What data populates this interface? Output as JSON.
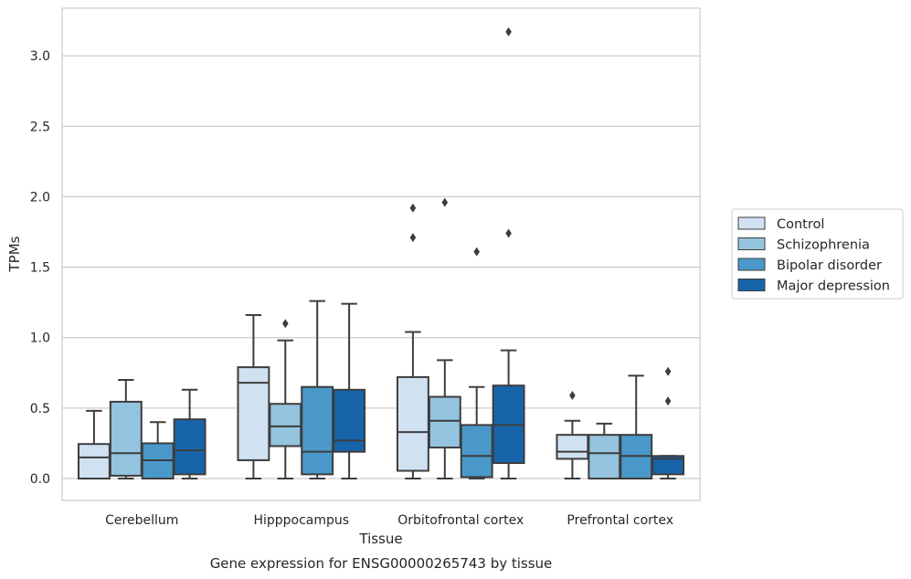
{
  "chart_data": {
    "type": "box",
    "title": "",
    "caption": "Gene expression for ENSG00000265743 by tissue",
    "xlabel": "Tissue",
    "ylabel": "TPMs",
    "ylim": [
      -0.15,
      3.33
    ],
    "yticks": [
      0.0,
      0.5,
      1.0,
      1.5,
      2.0,
      2.5,
      3.0
    ],
    "ytick_labels": [
      "0.0",
      "0.5",
      "1.0",
      "1.5",
      "2.0",
      "2.5",
      "3.0"
    ],
    "grid": "horizontal",
    "legend_position": "right",
    "categories": [
      "Cerebellum",
      "Hipppocampus",
      "Orbitofrontal cortex",
      "Prefrontal cortex"
    ],
    "series": [
      {
        "name": "Control",
        "color": "#d0e1f2",
        "boxes": [
          {
            "q1": 0.0,
            "median": 0.15,
            "q3": 0.245,
            "whislo": 0.0,
            "whishi": 0.48,
            "fliers": []
          },
          {
            "q1": 0.13,
            "median": 0.68,
            "q3": 0.79,
            "whislo": 0.0,
            "whishi": 1.16,
            "fliers": []
          },
          {
            "q1": 0.055,
            "median": 0.33,
            "q3": 0.72,
            "whislo": 0.0,
            "whishi": 1.04,
            "fliers": [
              1.71,
              1.92
            ]
          },
          {
            "q1": 0.14,
            "median": 0.19,
            "q3": 0.31,
            "whislo": 0.0,
            "whishi": 0.41,
            "fliers": [
              0.59
            ]
          }
        ]
      },
      {
        "name": "Schizophrenia",
        "color": "#94c4df",
        "boxes": [
          {
            "q1": 0.02,
            "median": 0.18,
            "q3": 0.545,
            "whislo": 0.0,
            "whishi": 0.7,
            "fliers": []
          },
          {
            "q1": 0.23,
            "median": 0.37,
            "q3": 0.53,
            "whislo": 0.0,
            "whishi": 0.98,
            "fliers": [
              1.1
            ]
          },
          {
            "q1": 0.22,
            "median": 0.41,
            "q3": 0.58,
            "whislo": 0.0,
            "whishi": 0.84,
            "fliers": [
              1.96
            ]
          },
          {
            "q1": 0.0,
            "median": 0.18,
            "q3": 0.31,
            "whislo": 0.0,
            "whishi": 0.39,
            "fliers": []
          }
        ]
      },
      {
        "name": "Bipolar disorder",
        "color": "#4a98c9",
        "boxes": [
          {
            "q1": 0.0,
            "median": 0.13,
            "q3": 0.25,
            "whislo": 0.0,
            "whishi": 0.4,
            "fliers": []
          },
          {
            "q1": 0.03,
            "median": 0.19,
            "q3": 0.65,
            "whislo": 0.0,
            "whishi": 1.26,
            "fliers": []
          },
          {
            "q1": 0.01,
            "median": 0.16,
            "q3": 0.38,
            "whislo": 0.0,
            "whishi": 0.65,
            "fliers": [
              1.61
            ]
          },
          {
            "q1": 0.0,
            "median": 0.16,
            "q3": 0.31,
            "whislo": 0.0,
            "whishi": 0.73,
            "fliers": []
          }
        ]
      },
      {
        "name": "Major depression",
        "color": "#1764ab",
        "boxes": [
          {
            "q1": 0.03,
            "median": 0.2,
            "q3": 0.42,
            "whislo": 0.0,
            "whishi": 0.63,
            "fliers": []
          },
          {
            "q1": 0.19,
            "median": 0.27,
            "q3": 0.63,
            "whislo": 0.0,
            "whishi": 1.24,
            "fliers": []
          },
          {
            "q1": 0.11,
            "median": 0.38,
            "q3": 0.66,
            "whislo": 0.0,
            "whishi": 0.91,
            "fliers": [
              1.74,
              3.17
            ]
          },
          {
            "q1": 0.03,
            "median": 0.14,
            "q3": 0.16,
            "whislo": 0.0,
            "whishi": 0.16,
            "fliers": [
              0.55,
              0.76
            ]
          }
        ]
      }
    ]
  }
}
